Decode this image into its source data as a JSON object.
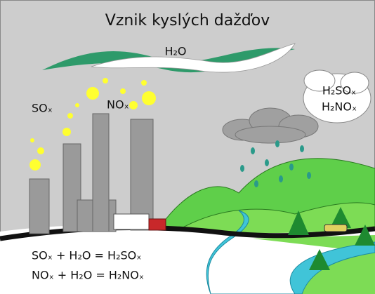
{
  "title": "Vznik kyslých dažďov",
  "labels": {
    "water": "H₂O",
    "sulfur": "SOₓ",
    "nitrogen": "NOₓ"
  },
  "cloud": [
    "H₂SOₓ",
    "H₂NOₓ"
  ],
  "equations": [
    "SOₓ + H₂O = H₂SOₓ",
    "NOₓ + H₂O = H₂NOₓ"
  ]
}
